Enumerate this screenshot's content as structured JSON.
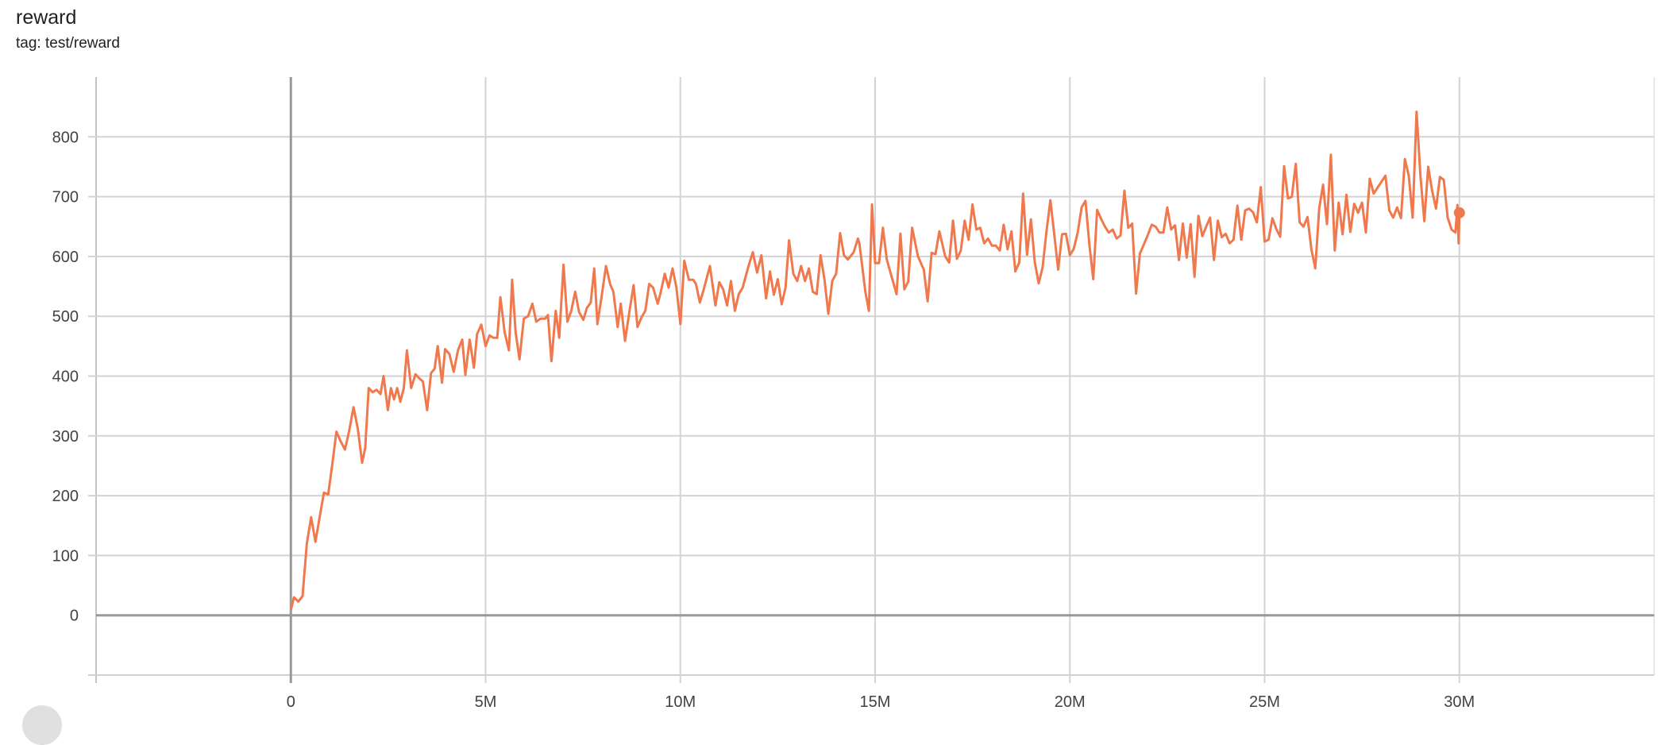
{
  "header": {
    "title": "reward",
    "tag": "tag: test/reward"
  },
  "chart_data": {
    "type": "line",
    "title": "reward",
    "xlabel": "",
    "ylabel": "",
    "xlim": [
      -5000000,
      35000000
    ],
    "ylim": [
      -100,
      900
    ],
    "xticks": [
      0,
      5000000,
      10000000,
      15000000,
      20000000,
      25000000,
      30000000
    ],
    "xtick_labels": [
      "0",
      "5M",
      "10M",
      "15M",
      "20M",
      "25M",
      "30M"
    ],
    "yticks": [
      0,
      100,
      200,
      300,
      400,
      500,
      600,
      700,
      800
    ],
    "ytick_labels": [
      "0",
      "100",
      "200",
      "300",
      "400",
      "500",
      "600",
      "700",
      "800"
    ],
    "grid": true,
    "color": "#f0784d",
    "x_unit": "M",
    "series": [
      {
        "points": [
          [
            0,
            9
          ],
          [
            0.08,
            30
          ],
          [
            0.19,
            23
          ],
          [
            0.3,
            32
          ],
          [
            0.41,
            120
          ],
          [
            0.52,
            164
          ],
          [
            0.63,
            123
          ],
          [
            0.74,
            164
          ],
          [
            0.85,
            205
          ],
          [
            0.96,
            202
          ],
          [
            1.07,
            255
          ],
          [
            1.17,
            307
          ],
          [
            1.28,
            291
          ],
          [
            1.39,
            277
          ],
          [
            1.5,
            309
          ],
          [
            1.61,
            348
          ],
          [
            1.72,
            312
          ],
          [
            1.83,
            255
          ],
          [
            1.91,
            280
          ],
          [
            2.0,
            380
          ],
          [
            2.1,
            373
          ],
          [
            2.2,
            377
          ],
          [
            2.3,
            370
          ],
          [
            2.38,
            400
          ],
          [
            2.49,
            343
          ],
          [
            2.57,
            380
          ],
          [
            2.65,
            361
          ],
          [
            2.73,
            380
          ],
          [
            2.81,
            357
          ],
          [
            2.9,
            380
          ],
          [
            2.98,
            443
          ],
          [
            3.09,
            380
          ],
          [
            3.2,
            403
          ],
          [
            3.3,
            396
          ],
          [
            3.39,
            391
          ],
          [
            3.5,
            343
          ],
          [
            3.6,
            405
          ],
          [
            3.69,
            412
          ],
          [
            3.77,
            450
          ],
          [
            3.88,
            389
          ],
          [
            3.96,
            445
          ],
          [
            4.07,
            437
          ],
          [
            4.18,
            407
          ],
          [
            4.29,
            443
          ],
          [
            4.4,
            461
          ],
          [
            4.48,
            402
          ],
          [
            4.59,
            461
          ],
          [
            4.7,
            414
          ],
          [
            4.78,
            470
          ],
          [
            4.89,
            486
          ],
          [
            5.0,
            450
          ],
          [
            5.1,
            468
          ],
          [
            5.2,
            464
          ],
          [
            5.3,
            464
          ],
          [
            5.38,
            532
          ],
          [
            5.49,
            473
          ],
          [
            5.6,
            443
          ],
          [
            5.68,
            561
          ],
          [
            5.77,
            473
          ],
          [
            5.87,
            428
          ],
          [
            5.98,
            496
          ],
          [
            6.09,
            500
          ],
          [
            6.2,
            521
          ],
          [
            6.3,
            491
          ],
          [
            6.41,
            496
          ],
          [
            6.53,
            496
          ],
          [
            6.6,
            502
          ],
          [
            6.69,
            425
          ],
          [
            6.8,
            509
          ],
          [
            6.89,
            464
          ],
          [
            7.0,
            586
          ],
          [
            7.1,
            491
          ],
          [
            7.2,
            509
          ],
          [
            7.3,
            541
          ],
          [
            7.4,
            507
          ],
          [
            7.51,
            494
          ],
          [
            7.6,
            514
          ],
          [
            7.7,
            523
          ],
          [
            7.79,
            580
          ],
          [
            7.87,
            487
          ],
          [
            7.98,
            534
          ],
          [
            8.09,
            584
          ],
          [
            8.2,
            553
          ],
          [
            8.28,
            541
          ],
          [
            8.39,
            482
          ],
          [
            8.47,
            521
          ],
          [
            8.58,
            459
          ],
          [
            8.69,
            507
          ],
          [
            8.8,
            552
          ],
          [
            8.9,
            482
          ],
          [
            9.0,
            498
          ],
          [
            9.1,
            509
          ],
          [
            9.2,
            554
          ],
          [
            9.3,
            548
          ],
          [
            9.42,
            521
          ],
          [
            9.5,
            541
          ],
          [
            9.6,
            571
          ],
          [
            9.7,
            548
          ],
          [
            9.8,
            580
          ],
          [
            9.9,
            548
          ],
          [
            10.0,
            487
          ],
          [
            10.1,
            593
          ],
          [
            10.22,
            561
          ],
          [
            10.33,
            561
          ],
          [
            10.4,
            554
          ],
          [
            10.5,
            523
          ],
          [
            10.6,
            545
          ],
          [
            10.76,
            584
          ],
          [
            10.9,
            518
          ],
          [
            11.0,
            557
          ],
          [
            11.1,
            545
          ],
          [
            11.2,
            518
          ],
          [
            11.3,
            559
          ],
          [
            11.4,
            509
          ],
          [
            11.5,
            537
          ],
          [
            11.6,
            548
          ],
          [
            11.75,
            584
          ],
          [
            11.86,
            607
          ],
          [
            11.97,
            573
          ],
          [
            12.08,
            602
          ],
          [
            12.2,
            530
          ],
          [
            12.3,
            575
          ],
          [
            12.4,
            536
          ],
          [
            12.5,
            562
          ],
          [
            12.6,
            520
          ],
          [
            12.7,
            548
          ],
          [
            12.79,
            627
          ],
          [
            12.9,
            571
          ],
          [
            13.0,
            559
          ],
          [
            13.1,
            584
          ],
          [
            13.2,
            559
          ],
          [
            13.3,
            580
          ],
          [
            13.4,
            541
          ],
          [
            13.5,
            537
          ],
          [
            13.6,
            602
          ],
          [
            13.7,
            562
          ],
          [
            13.8,
            504
          ],
          [
            13.9,
            559
          ],
          [
            14.0,
            571
          ],
          [
            14.1,
            639
          ],
          [
            14.2,
            602
          ],
          [
            14.3,
            595
          ],
          [
            14.45,
            607
          ],
          [
            14.56,
            630
          ],
          [
            14.6,
            620
          ],
          [
            14.75,
            541
          ],
          [
            14.84,
            509
          ],
          [
            14.92,
            687
          ],
          [
            15.0,
            589
          ],
          [
            15.1,
            589
          ],
          [
            15.2,
            648
          ],
          [
            15.3,
            595
          ],
          [
            15.45,
            560
          ],
          [
            15.55,
            537
          ],
          [
            15.65,
            638
          ],
          [
            15.75,
            545
          ],
          [
            15.85,
            558
          ],
          [
            15.95,
            648
          ],
          [
            16.1,
            600
          ],
          [
            16.25,
            578
          ],
          [
            16.35,
            525
          ],
          [
            16.45,
            606
          ],
          [
            16.55,
            604
          ],
          [
            16.65,
            642
          ],
          [
            16.8,
            600
          ],
          [
            16.9,
            590
          ],
          [
            17.0,
            660
          ],
          [
            17.1,
            596
          ],
          [
            17.2,
            610
          ],
          [
            17.3,
            660
          ],
          [
            17.4,
            628
          ],
          [
            17.5,
            687
          ],
          [
            17.6,
            645
          ],
          [
            17.7,
            648
          ],
          [
            17.8,
            622
          ],
          [
            17.9,
            630
          ],
          [
            18.0,
            618
          ],
          [
            18.1,
            618
          ],
          [
            18.2,
            610
          ],
          [
            18.3,
            653
          ],
          [
            18.4,
            612
          ],
          [
            18.5,
            642
          ],
          [
            18.6,
            575
          ],
          [
            18.7,
            590
          ],
          [
            18.8,
            705
          ],
          [
            18.9,
            603
          ],
          [
            19.0,
            662
          ],
          [
            19.1,
            590
          ],
          [
            19.2,
            555
          ],
          [
            19.3,
            582
          ],
          [
            19.4,
            642
          ],
          [
            19.5,
            694
          ],
          [
            19.6,
            637
          ],
          [
            19.7,
            578
          ],
          [
            19.8,
            637
          ],
          [
            19.9,
            638
          ],
          [
            20.0,
            602
          ],
          [
            20.1,
            613
          ],
          [
            20.2,
            640
          ],
          [
            20.3,
            682
          ],
          [
            20.4,
            693
          ],
          [
            20.5,
            620
          ],
          [
            20.6,
            562
          ],
          [
            20.7,
            678
          ],
          [
            20.8,
            663
          ],
          [
            20.9,
            650
          ],
          [
            21.0,
            640
          ],
          [
            21.1,
            645
          ],
          [
            21.2,
            630
          ],
          [
            21.3,
            635
          ],
          [
            21.4,
            710
          ],
          [
            21.5,
            648
          ],
          [
            21.6,
            655
          ],
          [
            21.7,
            538
          ],
          [
            21.8,
            605
          ],
          [
            21.9,
            620
          ],
          [
            22.0,
            636
          ],
          [
            22.1,
            653
          ],
          [
            22.2,
            650
          ],
          [
            22.3,
            640
          ],
          [
            22.4,
            640
          ],
          [
            22.5,
            682
          ],
          [
            22.6,
            645
          ],
          [
            22.7,
            652
          ],
          [
            22.8,
            594
          ],
          [
            22.9,
            655
          ],
          [
            23.0,
            598
          ],
          [
            23.1,
            654
          ],
          [
            23.2,
            566
          ],
          [
            23.3,
            668
          ],
          [
            23.4,
            634
          ],
          [
            23.5,
            650
          ],
          [
            23.6,
            665
          ],
          [
            23.7,
            594
          ],
          [
            23.8,
            660
          ],
          [
            23.9,
            632
          ],
          [
            24.0,
            638
          ],
          [
            24.1,
            622
          ],
          [
            24.2,
            628
          ],
          [
            24.3,
            685
          ],
          [
            24.4,
            628
          ],
          [
            24.5,
            677
          ],
          [
            24.6,
            680
          ],
          [
            24.7,
            674
          ],
          [
            24.8,
            657
          ],
          [
            24.9,
            716
          ],
          [
            25.0,
            625
          ],
          [
            25.1,
            628
          ],
          [
            25.2,
            664
          ],
          [
            25.3,
            646
          ],
          [
            25.4,
            633
          ],
          [
            25.5,
            751
          ],
          [
            25.6,
            697
          ],
          [
            25.7,
            700
          ],
          [
            25.8,
            755
          ],
          [
            25.9,
            657
          ],
          [
            26.0,
            650
          ],
          [
            26.1,
            666
          ],
          [
            26.2,
            612
          ],
          [
            26.3,
            580
          ],
          [
            26.4,
            680
          ],
          [
            26.5,
            720
          ],
          [
            26.6,
            654
          ],
          [
            26.7,
            770
          ],
          [
            26.8,
            610
          ],
          [
            26.9,
            690
          ],
          [
            27.0,
            637
          ],
          [
            27.1,
            703
          ],
          [
            27.2,
            641
          ],
          [
            27.3,
            688
          ],
          [
            27.4,
            673
          ],
          [
            27.5,
            690
          ],
          [
            27.6,
            640
          ],
          [
            27.7,
            730
          ],
          [
            27.8,
            705
          ],
          [
            27.9,
            715
          ],
          [
            28.0,
            725
          ],
          [
            28.1,
            735
          ],
          [
            28.2,
            677
          ],
          [
            28.3,
            665
          ],
          [
            28.4,
            682
          ],
          [
            28.5,
            664
          ],
          [
            28.6,
            763
          ],
          [
            28.7,
            735
          ],
          [
            28.8,
            665
          ],
          [
            28.9,
            842
          ],
          [
            29.0,
            735
          ],
          [
            29.1,
            659
          ],
          [
            29.2,
            750
          ],
          [
            29.3,
            710
          ],
          [
            29.4,
            680
          ],
          [
            29.5,
            733
          ],
          [
            29.6,
            728
          ],
          [
            29.7,
            665
          ],
          [
            29.8,
            645
          ],
          [
            29.9,
            640
          ],
          [
            29.95,
            686
          ],
          [
            29.98,
            622
          ],
          [
            30.0,
            673
          ]
        ]
      }
    ]
  }
}
